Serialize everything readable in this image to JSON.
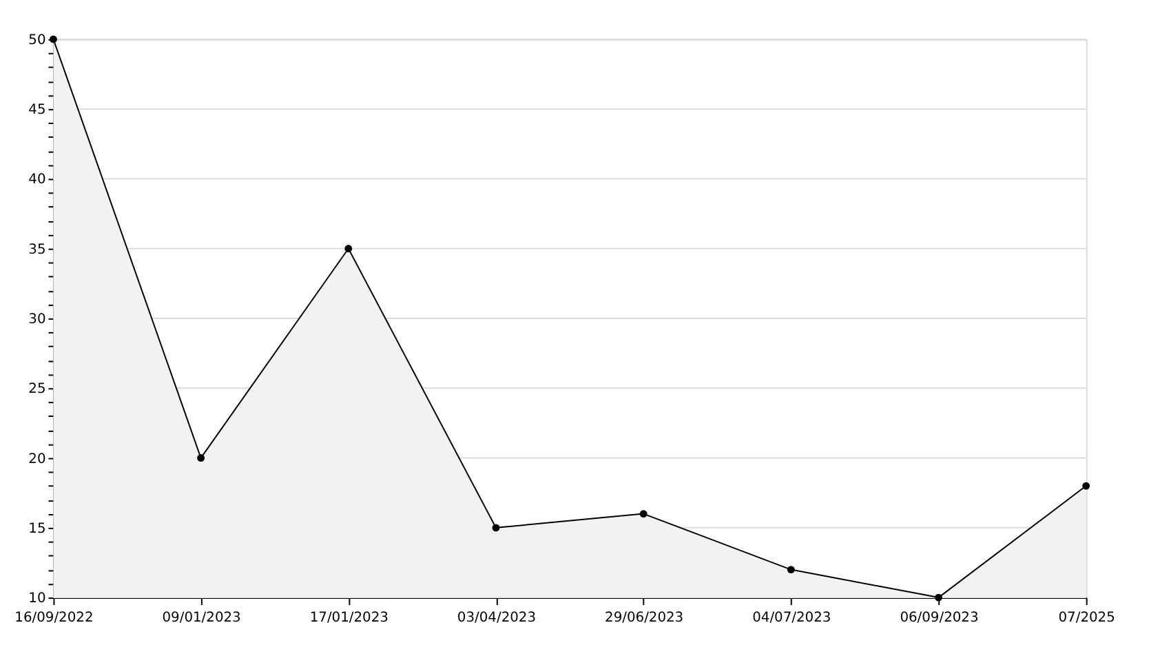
{
  "chart_data": {
    "type": "area",
    "categories": [
      "16/09/2022",
      "09/01/2023",
      "17/01/2023",
      "03/04/2023",
      "29/06/2023",
      "04/07/2023",
      "06/09/2023",
      "07/2025"
    ],
    "series": [
      {
        "color": "#000000",
        "values": [
          50,
          20,
          35,
          15,
          16,
          12,
          10,
          18
        ]
      }
    ],
    "ylim": [
      10,
      50
    ],
    "yticks": [
      10,
      {
        "value": 11,
        "label": null
      },
      {
        "value": 12,
        "label": null
      },
      {
        "value": 13,
        "label": null
      },
      {
        "value": 14,
        "label": null
      },
      15,
      {
        "value": 16,
        "label": null
      },
      {
        "value": 17,
        "label": null
      },
      {
        "value": 18,
        "label": null
      },
      {
        "value": 19,
        "label": null
      },
      20,
      {
        "value": 21,
        "label": null
      },
      {
        "value": 22,
        "label": null
      },
      {
        "value": 23,
        "label": null
      },
      {
        "value": 24,
        "label": null
      },
      25,
      {
        "value": 26,
        "label": null
      },
      {
        "value": 27,
        "label": null
      },
      {
        "value": 28,
        "label": null
      },
      {
        "value": 29,
        "label": null
      },
      30,
      {
        "value": 31,
        "label": null
      },
      {
        "value": 32,
        "label": null
      },
      {
        "value": 33,
        "label": null
      },
      {
        "value": 34,
        "label": null
      },
      35,
      {
        "value": 36,
        "label": null
      },
      {
        "value": 37,
        "label": null
      },
      {
        "value": 38,
        "label": null
      },
      {
        "value": 39,
        "label": null
      },
      40,
      {
        "value": 41,
        "label": null
      },
      {
        "value": 42,
        "label": null
      },
      {
        "value": 43,
        "label": null
      },
      {
        "value": 44,
        "label": null
      },
      45,
      {
        "value": 46,
        "label": null
      },
      {
        "value": 47,
        "label": null
      },
      {
        "value": 48,
        "label": null
      },
      {
        "value": 49,
        "label": null
      },
      50
    ],
    "grid": "y",
    "marker": "circle",
    "line_style": "solid"
  }
}
